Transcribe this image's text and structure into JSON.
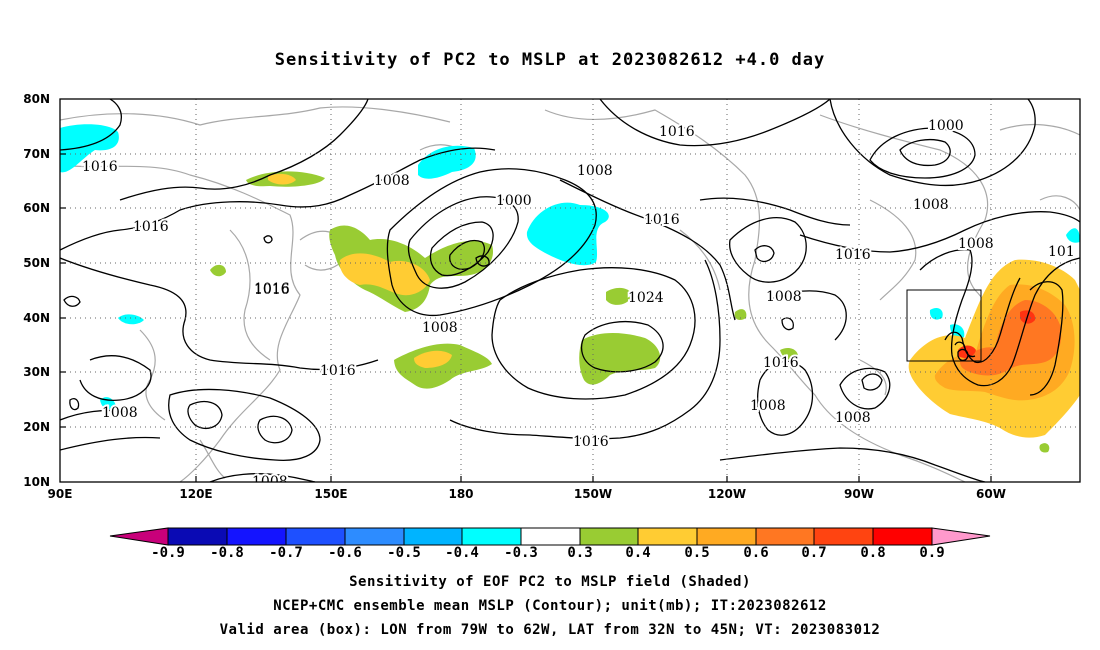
{
  "title": "Sensitivity of PC2 to MSLP at 2023082612 +4.0 day",
  "map": {
    "lat_labels": [
      "80N",
      "70N",
      "60N",
      "50N",
      "40N",
      "30N",
      "20N",
      "10N"
    ],
    "lon_labels": [
      "90E",
      "120E",
      "150E",
      "180",
      "150W",
      "120W",
      "90W",
      "60W"
    ],
    "valid_box": {
      "lon_west": -79,
      "lon_east": -62,
      "lat_south": 32,
      "lat_north": 45
    },
    "contour_labels": [
      {
        "text": "1016"
      },
      {
        "text": "1016"
      },
      {
        "text": "1008"
      },
      {
        "text": "1000"
      },
      {
        "text": "1008"
      },
      {
        "text": "1016"
      },
      {
        "text": "1016"
      },
      {
        "text": "1008"
      },
      {
        "text": "1000"
      },
      {
        "text": "1016"
      },
      {
        "text": "1008"
      },
      {
        "text": "1016"
      },
      {
        "text": "1008"
      },
      {
        "text": "1016"
      },
      {
        "text": "1008"
      },
      {
        "text": "1024"
      },
      {
        "text": "1016"
      },
      {
        "text": "1016"
      },
      {
        "text": "1008"
      },
      {
        "text": "1008"
      },
      {
        "text": "1008"
      },
      {
        "text": "1016"
      },
      {
        "text": "1008"
      },
      {
        "text": "101"
      }
    ]
  },
  "colorbar": {
    "colors": [
      "#c8007a",
      "#0a0ab4",
      "#1414ff",
      "#1e50ff",
      "#2d8cff",
      "#00b4ff",
      "#00ffff",
      "#ffffff",
      "#99cc33",
      "#ffcc33",
      "#ffaa22",
      "#ff7722",
      "#ff4411",
      "#ff0000",
      "#ff99cc"
    ],
    "labels": [
      "-0.9",
      "-0.8",
      "-0.7",
      "-0.6",
      "-0.5",
      "-0.4",
      "-0.3",
      "0.3",
      "0.4",
      "0.5",
      "0.6",
      "0.7",
      "0.8",
      "0.9"
    ]
  },
  "captions": {
    "line1": "Sensitivity of EOF PC2 to MSLP field (Shaded)",
    "line2": "NCEP+CMC ensemble mean MSLP (Contour); unit(mb); IT:2023082612",
    "line3": "Valid area (box): LON from 79W to 62W, LAT from 32N to 45N; VT: 2023083012"
  }
}
